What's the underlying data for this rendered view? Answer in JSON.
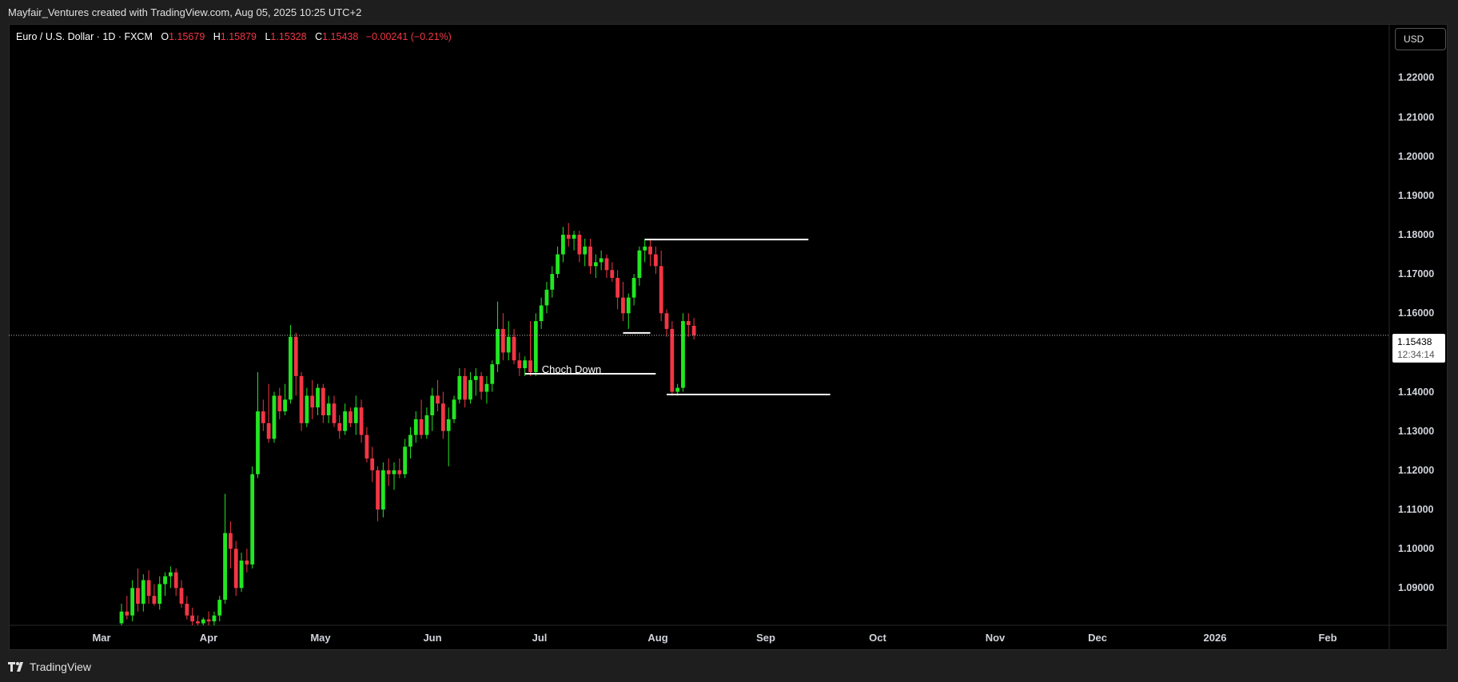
{
  "header": {
    "title": "Mayfair_Ventures created with TradingView.com, Aug 05, 2025 10:25 UTC+2"
  },
  "legend": {
    "symbol": "Euro / U.S. Dollar · 1D · FXCM",
    "o_label": "O",
    "o_value": "1.15679",
    "h_label": "H",
    "h_value": "1.15879",
    "l_label": "L",
    "l_value": "1.15328",
    "c_label": "C",
    "c_value": "1.15438",
    "change": "−0.00241 (−0.21%)"
  },
  "currency_button": "USD",
  "current_price": {
    "value": "1.15438",
    "countdown": "12:34:14"
  },
  "annotation": "Choch Down",
  "footer": {
    "brand": "TradingView"
  },
  "colors": {
    "up": "#22e622",
    "down": "#f23645",
    "background": "#000000",
    "line": "#ffffff"
  },
  "chart_data": {
    "type": "candlestick",
    "y_tick_labels": [
      "1.22000",
      "1.21000",
      "1.20000",
      "1.19000",
      "1.18000",
      "1.17000",
      "1.16000",
      "1.14000",
      "1.13000",
      "1.12000",
      "1.11000",
      "1.10000",
      "1.09000"
    ],
    "y_tick_values": [
      1.22,
      1.21,
      1.2,
      1.19,
      1.18,
      1.17,
      1.16,
      1.14,
      1.13,
      1.12,
      1.11,
      1.1,
      1.09
    ],
    "ylim": [
      1.0805,
      1.2335
    ],
    "x_tick_labels": [
      "Mar",
      "Apr",
      "May",
      "Jun",
      "Jul",
      "Aug",
      "Sep",
      "Oct",
      "Nov",
      "Dec",
      "2026",
      "Feb"
    ],
    "candles": [
      {
        "o": 1.081,
        "h": 1.086,
        "l": 1.079,
        "c": 1.084
      },
      {
        "o": 1.084,
        "h": 1.088,
        "l": 1.082,
        "c": 1.083
      },
      {
        "o": 1.083,
        "h": 1.092,
        "l": 1.0815,
        "c": 1.09
      },
      {
        "o": 1.09,
        "h": 1.095,
        "l": 1.084,
        "c": 1.086
      },
      {
        "o": 1.086,
        "h": 1.0935,
        "l": 1.084,
        "c": 1.092
      },
      {
        "o": 1.092,
        "h": 1.0945,
        "l": 1.086,
        "c": 1.088
      },
      {
        "o": 1.088,
        "h": 1.091,
        "l": 1.0855,
        "c": 1.086
      },
      {
        "o": 1.086,
        "h": 1.093,
        "l": 1.0845,
        "c": 1.091
      },
      {
        "o": 1.091,
        "h": 1.094,
        "l": 1.088,
        "c": 1.093
      },
      {
        "o": 1.093,
        "h": 1.0955,
        "l": 1.09,
        "c": 1.094
      },
      {
        "o": 1.094,
        "h": 1.095,
        "l": 1.088,
        "c": 1.09
      },
      {
        "o": 1.09,
        "h": 1.092,
        "l": 1.085,
        "c": 1.086
      },
      {
        "o": 1.086,
        "h": 1.088,
        "l": 1.082,
        "c": 1.083
      },
      {
        "o": 1.083,
        "h": 1.085,
        "l": 1.0805,
        "c": 1.0815
      },
      {
        "o": 1.0815,
        "h": 1.083,
        "l": 1.08,
        "c": 1.081
      },
      {
        "o": 1.081,
        "h": 1.0825,
        "l": 1.08,
        "c": 1.082
      },
      {
        "o": 1.082,
        "h": 1.084,
        "l": 1.0805,
        "c": 1.0815
      },
      {
        "o": 1.0815,
        "h": 1.084,
        "l": 1.08,
        "c": 1.083
      },
      {
        "o": 1.083,
        "h": 1.088,
        "l": 1.0815,
        "c": 1.087
      },
      {
        "o": 1.087,
        "h": 1.114,
        "l": 1.086,
        "c": 1.104
      },
      {
        "o": 1.104,
        "h": 1.107,
        "l": 1.095,
        "c": 1.1
      },
      {
        "o": 1.1,
        "h": 1.102,
        "l": 1.088,
        "c": 1.09
      },
      {
        "o": 1.09,
        "h": 1.099,
        "l": 1.089,
        "c": 1.097
      },
      {
        "o": 1.097,
        "h": 1.1,
        "l": 1.094,
        "c": 1.096
      },
      {
        "o": 1.096,
        "h": 1.121,
        "l": 1.095,
        "c": 1.119
      },
      {
        "o": 1.119,
        "h": 1.145,
        "l": 1.118,
        "c": 1.135
      },
      {
        "o": 1.135,
        "h": 1.138,
        "l": 1.13,
        "c": 1.132
      },
      {
        "o": 1.132,
        "h": 1.142,
        "l": 1.127,
        "c": 1.128
      },
      {
        "o": 1.128,
        "h": 1.14,
        "l": 1.127,
        "c": 1.139
      },
      {
        "o": 1.139,
        "h": 1.141,
        "l": 1.133,
        "c": 1.135
      },
      {
        "o": 1.135,
        "h": 1.142,
        "l": 1.134,
        "c": 1.138
      },
      {
        "o": 1.138,
        "h": 1.157,
        "l": 1.137,
        "c": 1.154
      },
      {
        "o": 1.154,
        "h": 1.155,
        "l": 1.139,
        "c": 1.144
      },
      {
        "o": 1.144,
        "h": 1.145,
        "l": 1.13,
        "c": 1.132
      },
      {
        "o": 1.132,
        "h": 1.141,
        "l": 1.131,
        "c": 1.139
      },
      {
        "o": 1.139,
        "h": 1.143,
        "l": 1.133,
        "c": 1.136
      },
      {
        "o": 1.136,
        "h": 1.142,
        "l": 1.134,
        "c": 1.141
      },
      {
        "o": 1.141,
        "h": 1.142,
        "l": 1.132,
        "c": 1.134
      },
      {
        "o": 1.134,
        "h": 1.139,
        "l": 1.132,
        "c": 1.137
      },
      {
        "o": 1.137,
        "h": 1.139,
        "l": 1.131,
        "c": 1.132
      },
      {
        "o": 1.132,
        "h": 1.134,
        "l": 1.128,
        "c": 1.13
      },
      {
        "o": 1.13,
        "h": 1.137,
        "l": 1.129,
        "c": 1.135
      },
      {
        "o": 1.135,
        "h": 1.136,
        "l": 1.131,
        "c": 1.132
      },
      {
        "o": 1.132,
        "h": 1.139,
        "l": 1.129,
        "c": 1.136
      },
      {
        "o": 1.136,
        "h": 1.138,
        "l": 1.127,
        "c": 1.129
      },
      {
        "o": 1.129,
        "h": 1.131,
        "l": 1.122,
        "c": 1.123
      },
      {
        "o": 1.123,
        "h": 1.126,
        "l": 1.117,
        "c": 1.12
      },
      {
        "o": 1.12,
        "h": 1.121,
        "l": 1.107,
        "c": 1.11
      },
      {
        "o": 1.11,
        "h": 1.122,
        "l": 1.108,
        "c": 1.12
      },
      {
        "o": 1.12,
        "h": 1.123,
        "l": 1.116,
        "c": 1.119
      },
      {
        "o": 1.119,
        "h": 1.122,
        "l": 1.115,
        "c": 1.12
      },
      {
        "o": 1.12,
        "h": 1.123,
        "l": 1.118,
        "c": 1.119
      },
      {
        "o": 1.119,
        "h": 1.128,
        "l": 1.118,
        "c": 1.126
      },
      {
        "o": 1.126,
        "h": 1.131,
        "l": 1.123,
        "c": 1.129
      },
      {
        "o": 1.129,
        "h": 1.135,
        "l": 1.127,
        "c": 1.133
      },
      {
        "o": 1.133,
        "h": 1.138,
        "l": 1.128,
        "c": 1.129
      },
      {
        "o": 1.129,
        "h": 1.136,
        "l": 1.128,
        "c": 1.134
      },
      {
        "o": 1.134,
        "h": 1.141,
        "l": 1.13,
        "c": 1.139
      },
      {
        "o": 1.139,
        "h": 1.143,
        "l": 1.135,
        "c": 1.137
      },
      {
        "o": 1.137,
        "h": 1.14,
        "l": 1.128,
        "c": 1.13
      },
      {
        "o": 1.13,
        "h": 1.136,
        "l": 1.121,
        "c": 1.133
      },
      {
        "o": 1.133,
        "h": 1.139,
        "l": 1.132,
        "c": 1.138
      },
      {
        "o": 1.138,
        "h": 1.146,
        "l": 1.137,
        "c": 1.144
      },
      {
        "o": 1.144,
        "h": 1.146,
        "l": 1.136,
        "c": 1.138
      },
      {
        "o": 1.138,
        "h": 1.145,
        "l": 1.137,
        "c": 1.143
      },
      {
        "o": 1.143,
        "h": 1.146,
        "l": 1.139,
        "c": 1.144
      },
      {
        "o": 1.144,
        "h": 1.145,
        "l": 1.138,
        "c": 1.14
      },
      {
        "o": 1.14,
        "h": 1.144,
        "l": 1.137,
        "c": 1.142
      },
      {
        "o": 1.142,
        "h": 1.148,
        "l": 1.14,
        "c": 1.147
      },
      {
        "o": 1.147,
        "h": 1.163,
        "l": 1.145,
        "c": 1.156
      },
      {
        "o": 1.156,
        "h": 1.16,
        "l": 1.148,
        "c": 1.15
      },
      {
        "o": 1.15,
        "h": 1.158,
        "l": 1.148,
        "c": 1.154
      },
      {
        "o": 1.154,
        "h": 1.156,
        "l": 1.147,
        "c": 1.148
      },
      {
        "o": 1.148,
        "h": 1.15,
        "l": 1.144,
        "c": 1.146
      },
      {
        "o": 1.146,
        "h": 1.149,
        "l": 1.144,
        "c": 1.148
      },
      {
        "o": 1.148,
        "h": 1.158,
        "l": 1.144,
        "c": 1.145
      },
      {
        "o": 1.145,
        "h": 1.16,
        "l": 1.144,
        "c": 1.158
      },
      {
        "o": 1.158,
        "h": 1.164,
        "l": 1.156,
        "c": 1.162
      },
      {
        "o": 1.162,
        "h": 1.168,
        "l": 1.16,
        "c": 1.166
      },
      {
        "o": 1.166,
        "h": 1.172,
        "l": 1.164,
        "c": 1.17
      },
      {
        "o": 1.17,
        "h": 1.177,
        "l": 1.169,
        "c": 1.175
      },
      {
        "o": 1.175,
        "h": 1.182,
        "l": 1.173,
        "c": 1.18
      },
      {
        "o": 1.18,
        "h": 1.183,
        "l": 1.177,
        "c": 1.179
      },
      {
        "o": 1.179,
        "h": 1.181,
        "l": 1.176,
        "c": 1.18
      },
      {
        "o": 1.18,
        "h": 1.181,
        "l": 1.173,
        "c": 1.175
      },
      {
        "o": 1.175,
        "h": 1.179,
        "l": 1.172,
        "c": 1.177
      },
      {
        "o": 1.177,
        "h": 1.179,
        "l": 1.17,
        "c": 1.172
      },
      {
        "o": 1.172,
        "h": 1.175,
        "l": 1.169,
        "c": 1.173
      },
      {
        "o": 1.173,
        "h": 1.176,
        "l": 1.171,
        "c": 1.174
      },
      {
        "o": 1.174,
        "h": 1.175,
        "l": 1.169,
        "c": 1.171
      },
      {
        "o": 1.171,
        "h": 1.173,
        "l": 1.168,
        "c": 1.169
      },
      {
        "o": 1.169,
        "h": 1.171,
        "l": 1.161,
        "c": 1.164
      },
      {
        "o": 1.164,
        "h": 1.168,
        "l": 1.158,
        "c": 1.16
      },
      {
        "o": 1.16,
        "h": 1.165,
        "l": 1.156,
        "c": 1.164
      },
      {
        "o": 1.164,
        "h": 1.17,
        "l": 1.162,
        "c": 1.169
      },
      {
        "o": 1.169,
        "h": 1.177,
        "l": 1.167,
        "c": 1.176
      },
      {
        "o": 1.176,
        "h": 1.179,
        "l": 1.173,
        "c": 1.177
      },
      {
        "o": 1.177,
        "h": 1.179,
        "l": 1.172,
        "c": 1.175
      },
      {
        "o": 1.175,
        "h": 1.177,
        "l": 1.17,
        "c": 1.172
      },
      {
        "o": 1.172,
        "h": 1.176,
        "l": 1.158,
        "c": 1.16
      },
      {
        "o": 1.16,
        "h": 1.161,
        "l": 1.154,
        "c": 1.156
      },
      {
        "o": 1.156,
        "h": 1.158,
        "l": 1.139,
        "c": 1.14
      },
      {
        "o": 1.14,
        "h": 1.142,
        "l": 1.139,
        "c": 1.141
      },
      {
        "o": 1.141,
        "h": 1.16,
        "l": 1.14,
        "c": 1.158
      },
      {
        "o": 1.158,
        "h": 1.16,
        "l": 1.154,
        "c": 1.157
      },
      {
        "o": 1.1568,
        "h": 1.1588,
        "l": 1.1533,
        "c": 1.1544
      }
    ],
    "horizontal_lines": [
      {
        "price": 1.1788,
        "from_index": 96,
        "to_index": 126
      },
      {
        "price": 1.155,
        "from_index": 92,
        "to_index": 97
      },
      {
        "price": 1.1446,
        "from_index": 74,
        "to_index": 98
      },
      {
        "price": 1.1393,
        "from_index": 100,
        "to_index": 130
      }
    ],
    "current_price": 1.15438
  }
}
